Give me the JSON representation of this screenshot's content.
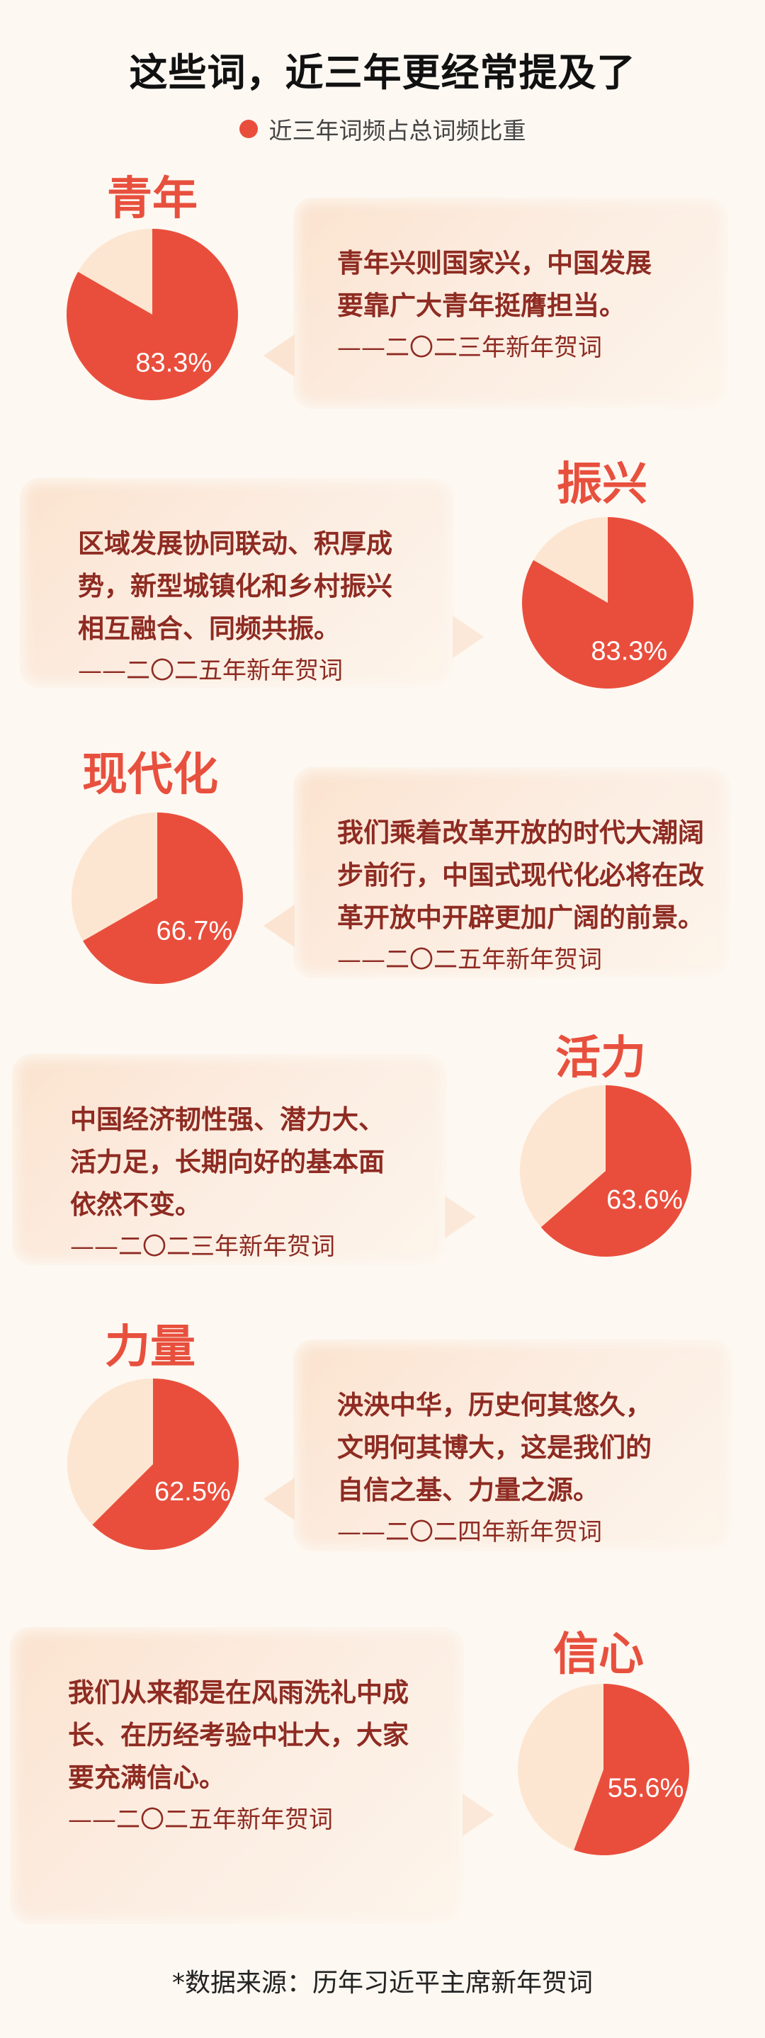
{
  "title": "这些词，近三年更经常提及了",
  "legend": {
    "label": "近三年词频占总词频比重",
    "color": "#e94e3c"
  },
  "colors": {
    "share": "#e94e3c",
    "rest": "#fde6d1",
    "term": "#e8503e",
    "quote": "#8e2b22"
  },
  "chart_data": {
    "type": "pie",
    "title": "这些词，近三年更经常提及了",
    "legend": [
      "近三年词频占总词频比重"
    ],
    "items": [
      {
        "term": "青年",
        "value": 83.3,
        "label": "83.3%",
        "quote": [
          "青年兴则国家兴，中国发展",
          "要靠广大青年挺膺担当。"
        ],
        "source": "——二〇二三年新年贺词"
      },
      {
        "term": "振兴",
        "value": 83.3,
        "label": "83.3%",
        "quote": [
          "区域发展协同联动、积厚成",
          "势，新型城镇化和乡村振兴",
          "相互融合、同频共振。"
        ],
        "source": "——二〇二五年新年贺词"
      },
      {
        "term": "现代化",
        "value": 66.7,
        "label": "66.7%",
        "quote": [
          "我们乘着改革开放的时代大潮阔",
          "步前行，中国式现代化必将在改",
          "革开放中开辟更加广阔的前景。"
        ],
        "source": "——二〇二五年新年贺词"
      },
      {
        "term": "活力",
        "value": 63.6,
        "label": "63.6%",
        "quote": [
          "中国经济韧性强、潜力大、",
          "活力足，长期向好的基本面",
          "依然不变。"
        ],
        "source": "——二〇二三年新年贺词"
      },
      {
        "term": "力量",
        "value": 62.5,
        "label": "62.5%",
        "quote": [
          "泱泱中华，历史何其悠久，",
          "文明何其博大，这是我们的",
          "自信之基、力量之源。"
        ],
        "source": "——二〇二四年新年贺词"
      },
      {
        "term": "信心",
        "value": 55.6,
        "label": "55.6%",
        "quote": [
          "我们从来都是在风雨洗礼中成",
          "长、在历经考验中壮大，大家",
          "要充满信心。"
        ],
        "source": "——二〇二五年新年贺词"
      }
    ]
  },
  "footnote": "*数据来源：历年习近平主席新年贺词"
}
